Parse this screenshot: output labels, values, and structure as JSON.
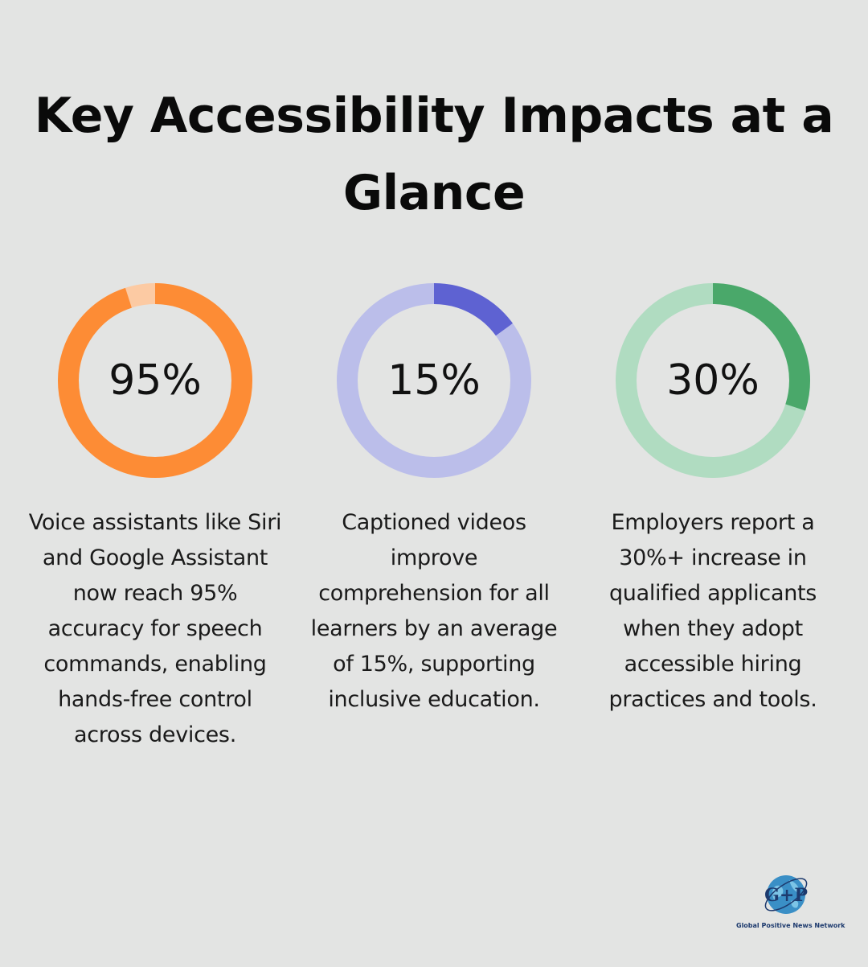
{
  "title": "Key Accessibility Impacts at a Glance",
  "chart_data": [
    {
      "type": "pie",
      "value_label": "95%",
      "value": 95,
      "max": 100,
      "colors": {
        "fill": "#fd8c35",
        "track": "#fccaa3"
      },
      "description": "Voice assistants like Siri and Google Assistant now reach 95% accuracy for speech commands, enabling hands-free control across devices."
    },
    {
      "type": "pie",
      "value_label": "15%",
      "value": 15,
      "max": 100,
      "colors": {
        "fill": "#5e62d2",
        "track": "#bbbeea"
      },
      "description": "Captioned videos improve comprehension for all learners by an average of 15%, supporting inclusive education."
    },
    {
      "type": "pie",
      "value_label": "30%",
      "value": 30,
      "max": 100,
      "colors": {
        "fill": "#4aa86a",
        "track": "#b0dcc1"
      },
      "description": "Employers report a 30%+ increase in qualified applicants when they adopt accessible hiring practices and tools."
    }
  ],
  "logo": {
    "letters": "G+P",
    "text": "Global Positive News Network",
    "colors": {
      "globe": "#3a8fc6",
      "letters": "#1d3a6e"
    }
  }
}
